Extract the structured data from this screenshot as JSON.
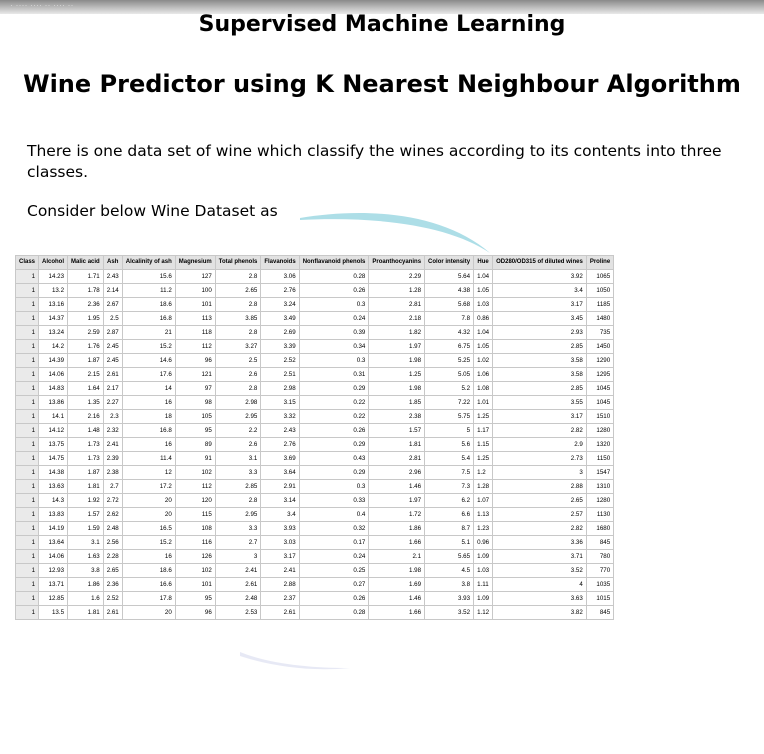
{
  "top_bar_text": "· ···· ···· ·· ···· ··",
  "title": "Supervised Machine Learning",
  "subtitle": "Wine Predictor using K Nearest Neighbour Algorithm",
  "paragraph1": "There is one data set of wine which classify the wines according to its contents into three classes.",
  "paragraph2": "Consider below Wine Dataset as",
  "swoosh_color": "#9fd8e3",
  "table": {
    "headers": [
      "Class",
      "Alcohol",
      "Malic acid",
      "Ash",
      "Alcalinity of ash",
      "Magnesium",
      "Total phenols",
      "Flavanoids",
      "Nonflavanoid phenols",
      "Proanthocyanins",
      "Color intensity",
      "Hue",
      "OD280/OD315 of diluted wines",
      "Proline"
    ],
    "rows": [
      [
        "1",
        "14.23",
        "1.71",
        "2.43",
        "15.6",
        "127",
        "2.8",
        "3.06",
        "0.28",
        "2.29",
        "5.64",
        "1.04",
        "3.92",
        "1065"
      ],
      [
        "1",
        "13.2",
        "1.78",
        "2.14",
        "11.2",
        "100",
        "2.65",
        "2.76",
        "0.26",
        "1.28",
        "4.38",
        "1.05",
        "3.4",
        "1050"
      ],
      [
        "1",
        "13.16",
        "2.36",
        "2.67",
        "18.6",
        "101",
        "2.8",
        "3.24",
        "0.3",
        "2.81",
        "5.68",
        "1.03",
        "3.17",
        "1185"
      ],
      [
        "1",
        "14.37",
        "1.95",
        "2.5",
        "16.8",
        "113",
        "3.85",
        "3.49",
        "0.24",
        "2.18",
        "7.8",
        "0.86",
        "3.45",
        "1480"
      ],
      [
        "1",
        "13.24",
        "2.59",
        "2.87",
        "21",
        "118",
        "2.8",
        "2.69",
        "0.39",
        "1.82",
        "4.32",
        "1.04",
        "2.93",
        "735"
      ],
      [
        "1",
        "14.2",
        "1.76",
        "2.45",
        "15.2",
        "112",
        "3.27",
        "3.39",
        "0.34",
        "1.97",
        "6.75",
        "1.05",
        "2.85",
        "1450"
      ],
      [
        "1",
        "14.39",
        "1.87",
        "2.45",
        "14.6",
        "96",
        "2.5",
        "2.52",
        "0.3",
        "1.98",
        "5.25",
        "1.02",
        "3.58",
        "1290"
      ],
      [
        "1",
        "14.06",
        "2.15",
        "2.61",
        "17.6",
        "121",
        "2.6",
        "2.51",
        "0.31",
        "1.25",
        "5.05",
        "1.06",
        "3.58",
        "1295"
      ],
      [
        "1",
        "14.83",
        "1.64",
        "2.17",
        "14",
        "97",
        "2.8",
        "2.98",
        "0.29",
        "1.98",
        "5.2",
        "1.08",
        "2.85",
        "1045"
      ],
      [
        "1",
        "13.86",
        "1.35",
        "2.27",
        "16",
        "98",
        "2.98",
        "3.15",
        "0.22",
        "1.85",
        "7.22",
        "1.01",
        "3.55",
        "1045"
      ],
      [
        "1",
        "14.1",
        "2.16",
        "2.3",
        "18",
        "105",
        "2.95",
        "3.32",
        "0.22",
        "2.38",
        "5.75",
        "1.25",
        "3.17",
        "1510"
      ],
      [
        "1",
        "14.12",
        "1.48",
        "2.32",
        "16.8",
        "95",
        "2.2",
        "2.43",
        "0.26",
        "1.57",
        "5",
        "1.17",
        "2.82",
        "1280"
      ],
      [
        "1",
        "13.75",
        "1.73",
        "2.41",
        "16",
        "89",
        "2.6",
        "2.76",
        "0.29",
        "1.81",
        "5.6",
        "1.15",
        "2.9",
        "1320"
      ],
      [
        "1",
        "14.75",
        "1.73",
        "2.39",
        "11.4",
        "91",
        "3.1",
        "3.69",
        "0.43",
        "2.81",
        "5.4",
        "1.25",
        "2.73",
        "1150"
      ],
      [
        "1",
        "14.38",
        "1.87",
        "2.38",
        "12",
        "102",
        "3.3",
        "3.64",
        "0.29",
        "2.96",
        "7.5",
        "1.2",
        "3",
        "1547"
      ],
      [
        "1",
        "13.63",
        "1.81",
        "2.7",
        "17.2",
        "112",
        "2.85",
        "2.91",
        "0.3",
        "1.46",
        "7.3",
        "1.28",
        "2.88",
        "1310"
      ],
      [
        "1",
        "14.3",
        "1.92",
        "2.72",
        "20",
        "120",
        "2.8",
        "3.14",
        "0.33",
        "1.97",
        "6.2",
        "1.07",
        "2.65",
        "1280"
      ],
      [
        "1",
        "13.83",
        "1.57",
        "2.62",
        "20",
        "115",
        "2.95",
        "3.4",
        "0.4",
        "1.72",
        "6.6",
        "1.13",
        "2.57",
        "1130"
      ],
      [
        "1",
        "14.19",
        "1.59",
        "2.48",
        "16.5",
        "108",
        "3.3",
        "3.93",
        "0.32",
        "1.86",
        "8.7",
        "1.23",
        "2.82",
        "1680"
      ],
      [
        "1",
        "13.64",
        "3.1",
        "2.56",
        "15.2",
        "116",
        "2.7",
        "3.03",
        "0.17",
        "1.66",
        "5.1",
        "0.96",
        "3.36",
        "845"
      ],
      [
        "1",
        "14.06",
        "1.63",
        "2.28",
        "16",
        "126",
        "3",
        "3.17",
        "0.24",
        "2.1",
        "5.65",
        "1.09",
        "3.71",
        "780"
      ],
      [
        "1",
        "12.93",
        "3.8",
        "2.65",
        "18.6",
        "102",
        "2.41",
        "2.41",
        "0.25",
        "1.98",
        "4.5",
        "1.03",
        "3.52",
        "770"
      ],
      [
        "1",
        "13.71",
        "1.86",
        "2.36",
        "16.6",
        "101",
        "2.61",
        "2.88",
        "0.27",
        "1.69",
        "3.8",
        "1.11",
        "4",
        "1035"
      ],
      [
        "1",
        "12.85",
        "1.6",
        "2.52",
        "17.8",
        "95",
        "2.48",
        "2.37",
        "0.26",
        "1.46",
        "3.93",
        "1.09",
        "3.63",
        "1015"
      ],
      [
        "1",
        "13.5",
        "1.81",
        "2.61",
        "20",
        "96",
        "2.53",
        "2.61",
        "0.28",
        "1.66",
        "3.52",
        "1.12",
        "3.82",
        "845"
      ]
    ]
  }
}
